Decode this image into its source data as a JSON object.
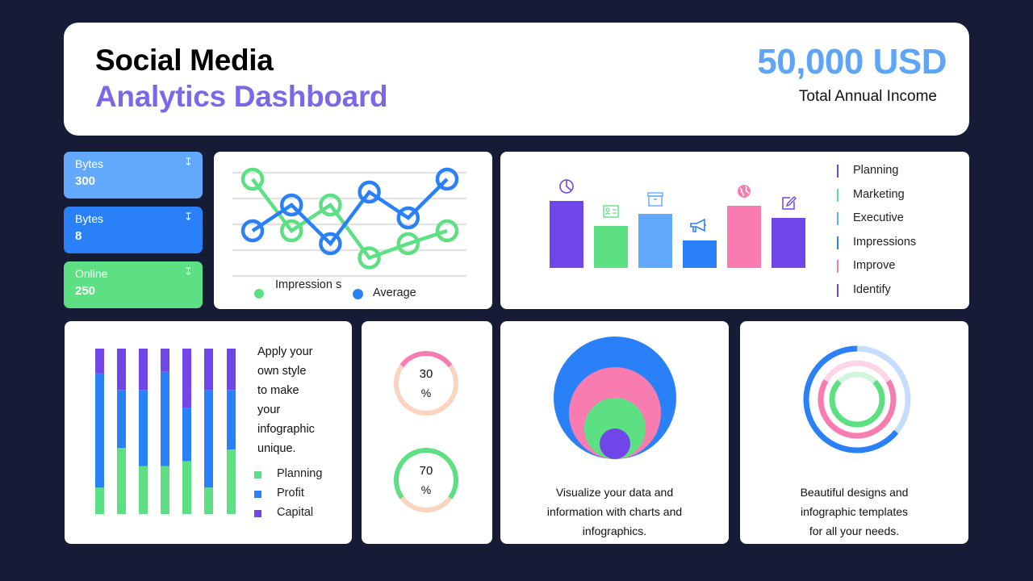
{
  "header": {
    "title_line1": "Social Media",
    "title_line2": "Analytics Dashboard",
    "income_value": "50,000 USD",
    "income_label": "Total Annual Income"
  },
  "stats": [
    {
      "label": "Bytes",
      "value": "300",
      "icon": "download-arrow-icon",
      "color": "#62a8fb"
    },
    {
      "label": "Bytes",
      "value": "8",
      "icon": "download-arrow-icon",
      "color": "#2a81f7"
    },
    {
      "label": "Online",
      "value": "250",
      "icon": "download-arrow-icon",
      "color": "#5ce083"
    }
  ],
  "colors": {
    "purple": "#7046e8",
    "green": "#5ce083",
    "light_blue": "#62a8fb",
    "blue": "#2a81f7",
    "pink": "#f97cb0",
    "peach": "#fbd4c0",
    "title_purple": "#7b68e8"
  },
  "chart_data": [
    {
      "type": "line",
      "title": "",
      "x": [
        1,
        2,
        3,
        4,
        5,
        6
      ],
      "ylim": [
        0,
        4
      ],
      "grid": true,
      "legend_position": "bottom",
      "series": [
        {
          "name": "Impressions",
          "legend_label": "Impression s",
          "color": "#5ce083",
          "values": [
            3.75,
            1.75,
            2.75,
            0.7,
            1.25,
            1.75
          ]
        },
        {
          "name": "Average",
          "legend_label": "Average",
          "color": "#2a81f7",
          "values": [
            1.75,
            2.75,
            1.25,
            3.25,
            2.25,
            3.75
          ]
        }
      ]
    },
    {
      "type": "bar",
      "title": "",
      "categories": [
        "Planning",
        "Marketing",
        "Executive",
        "Impressions",
        "Improve",
        "Identify"
      ],
      "values": [
        83,
        52,
        67,
        34,
        77,
        62
      ],
      "ylim": [
        0,
        100
      ],
      "colors": [
        "#7046e8",
        "#5ce083",
        "#62a8fb",
        "#2a81f7",
        "#f97cb0",
        "#7046e8"
      ],
      "icons": [
        "pie-chart-icon",
        "id-card-icon",
        "archive-box-icon",
        "megaphone-icon",
        "globe-icon",
        "edit-icon"
      ],
      "legend_position": "right"
    },
    {
      "type": "bar",
      "subtype": "stacked-100",
      "categories": [
        "1",
        "2",
        "3",
        "4",
        "5",
        "6",
        "7"
      ],
      "series": [
        {
          "name": "Planning",
          "color": "#5ce083",
          "values": [
            16,
            40,
            29,
            29,
            32,
            16,
            39
          ]
        },
        {
          "name": "Profit",
          "color": "#2a81f7",
          "values": [
            69,
            35,
            46,
            57,
            32,
            59,
            36
          ]
        },
        {
          "name": "Capital",
          "color": "#7046e8",
          "values": [
            15,
            25,
            25,
            14,
            36,
            25,
            25
          ]
        }
      ],
      "ylim": [
        0,
        100
      ],
      "legend_position": "right"
    },
    {
      "type": "pie",
      "subtype": "donut-progress",
      "items": [
        {
          "value": 30,
          "label": "30",
          "unit": "%",
          "color": "#f97cb0",
          "track": "#fbd4c0"
        },
        {
          "value": 70,
          "label": "70",
          "unit": "%",
          "color": "#5ce083",
          "track": "#fbd4c0"
        }
      ]
    },
    {
      "type": "pie",
      "subtype": "nested-circles",
      "items": [
        {
          "value": 100,
          "color": "#2a81f7"
        },
        {
          "value": 75,
          "color": "#f97cb0"
        },
        {
          "value": 50,
          "color": "#5ce083"
        },
        {
          "value": 25,
          "color": "#7046e8"
        }
      ]
    },
    {
      "type": "pie",
      "subtype": "concentric-rings",
      "items": [
        {
          "value": 64,
          "color": "#2a81f7",
          "track": "#c6dcfb"
        },
        {
          "value": 67,
          "color": "#f97cb0",
          "track": "#fcd6e6"
        },
        {
          "value": 75,
          "color": "#5ce083",
          "track": "#d2f6dd"
        }
      ]
    }
  ],
  "stacked_panel": {
    "text": [
      "Apply your",
      "own style",
      "to make",
      "your",
      "infographic",
      "unique."
    ],
    "legend": [
      "Planning",
      "Profit",
      "Capital"
    ]
  },
  "circles_panel": {
    "caption": [
      "Visualize your data and",
      "information with charts and",
      "infographics."
    ]
  },
  "rings_panel": {
    "caption": [
      "Beautiful designs and",
      "infographic templates",
      "for all your needs."
    ]
  }
}
